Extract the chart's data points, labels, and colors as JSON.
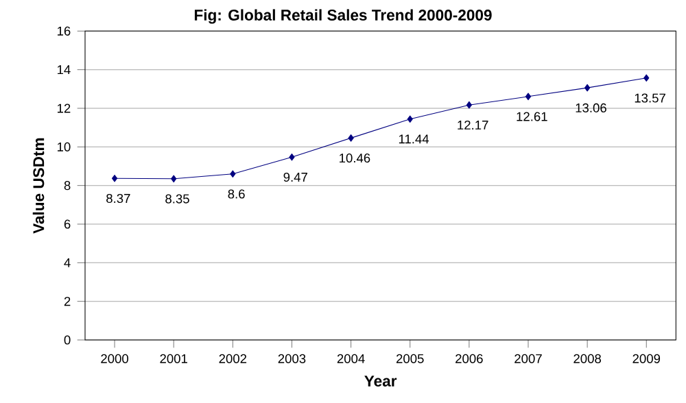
{
  "chart_data": {
    "type": "line",
    "title": "Fig: Global Retail Sales Trend 2000-2009",
    "xlabel": "Year",
    "ylabel": "Value USDtm",
    "categories": [
      "2000",
      "2001",
      "2002",
      "2003",
      "2004",
      "2005",
      "2006",
      "2007",
      "2008",
      "2009"
    ],
    "values": [
      8.37,
      8.35,
      8.6,
      9.47,
      10.46,
      11.44,
      12.17,
      12.61,
      13.06,
      13.57
    ],
    "color": "#000080",
    "marker": "diamond",
    "line_style": "solid",
    "data_labels": true,
    "ylim": [
      0,
      16
    ],
    "yticks": [
      0,
      2,
      4,
      6,
      8,
      10,
      12,
      14,
      16
    ],
    "grid": "y"
  }
}
